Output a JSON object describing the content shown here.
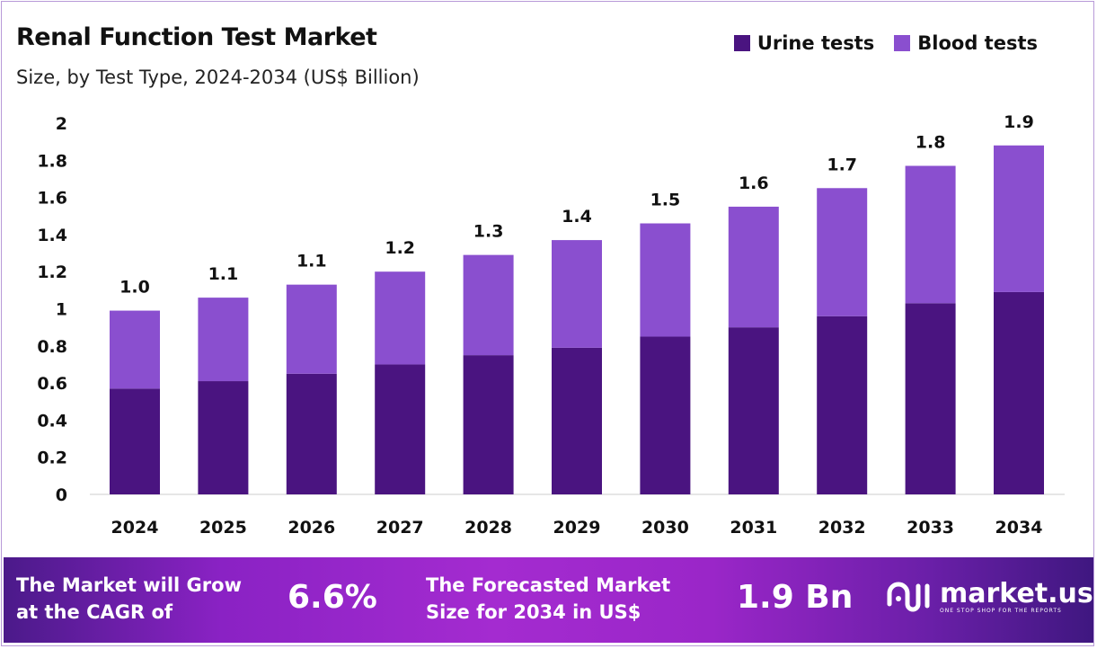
{
  "chart_data": {
    "type": "bar",
    "stacked": true,
    "title": "Renal Function Test Market",
    "subtitle": "Size, by Test Type, 2024-2034 (US$ Billion)",
    "categories": [
      "2024",
      "2025",
      "2026",
      "2027",
      "2028",
      "2029",
      "2030",
      "2031",
      "2032",
      "2033",
      "2034"
    ],
    "series": [
      {
        "name": "Urine tests",
        "color": "#4a1480",
        "values": [
          0.57,
          0.61,
          0.65,
          0.7,
          0.75,
          0.79,
          0.85,
          0.9,
          0.96,
          1.03,
          1.09
        ]
      },
      {
        "name": "Blood tests",
        "color": "#8a4fcf",
        "values": [
          0.42,
          0.45,
          0.48,
          0.5,
          0.54,
          0.58,
          0.61,
          0.65,
          0.69,
          0.74,
          0.79
        ]
      }
    ],
    "totals_labels": [
      "1.0",
      "1.1",
      "1.1",
      "1.2",
      "1.3",
      "1.4",
      "1.5",
      "1.6",
      "1.7",
      "1.8",
      "1.9"
    ],
    "ylim": [
      0,
      2
    ],
    "yticks": [
      "0",
      "0.2",
      "0.4",
      "0.6",
      "0.8",
      "1",
      "1.2",
      "1.4",
      "1.6",
      "1.8",
      "2"
    ],
    "grid": false,
    "legend_position": "top-right"
  },
  "footer": {
    "cagr_text_line1": "The Market will Grow",
    "cagr_text_line2": "at the CAGR of",
    "cagr_value": "6.6%",
    "forecast_text_line1": "The Forecasted Market",
    "forecast_text_line2": "Size for 2034 in US$",
    "forecast_value": "1.9 Bn",
    "logo_name": "market.us",
    "logo_tagline": "ONE STOP SHOP FOR THE REPORTS"
  }
}
